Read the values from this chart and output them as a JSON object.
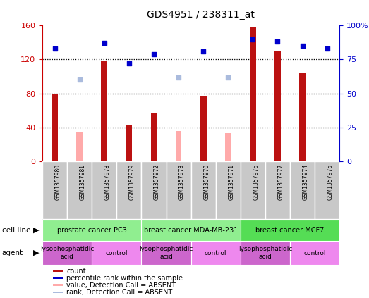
{
  "title": "GDS4951 / 238311_at",
  "samples": [
    "GSM1357980",
    "GSM1357981",
    "GSM1357978",
    "GSM1357979",
    "GSM1357972",
    "GSM1357973",
    "GSM1357970",
    "GSM1357971",
    "GSM1357976",
    "GSM1357977",
    "GSM1357974",
    "GSM1357975"
  ],
  "count_values": [
    80,
    null,
    118,
    42,
    57,
    null,
    77,
    null,
    158,
    130,
    105,
    null
  ],
  "count_absent": [
    null,
    34,
    null,
    null,
    null,
    36,
    null,
    33,
    null,
    null,
    null,
    null
  ],
  "rank_values": [
    83,
    null,
    87,
    72,
    79,
    null,
    81,
    null,
    90,
    88,
    85,
    83
  ],
  "rank_absent": [
    null,
    60,
    null,
    null,
    null,
    62,
    null,
    62,
    null,
    null,
    null,
    null
  ],
  "left_ylim": [
    0,
    160
  ],
  "right_ylim": [
    0,
    100
  ],
  "left_yticks": [
    0,
    40,
    80,
    120,
    160
  ],
  "right_yticks": [
    0,
    25,
    50,
    75,
    100
  ],
  "right_yticklabels": [
    "0",
    "25",
    "50",
    "75",
    "100%"
  ],
  "cell_lines": [
    {
      "label": "prostate cancer PC3",
      "start": 0,
      "end": 4,
      "color": "#90EE90"
    },
    {
      "label": "breast cancer MDA-MB-231",
      "start": 4,
      "end": 8,
      "color": "#90EE90"
    },
    {
      "label": "breast cancer MCF7",
      "start": 8,
      "end": 12,
      "color": "#55DD55"
    }
  ],
  "agents": [
    {
      "label": "lysophosphatidic\nacid",
      "start": 0,
      "end": 2,
      "color": "#CC66CC"
    },
    {
      "label": "control",
      "start": 2,
      "end": 4,
      "color": "#EE88EE"
    },
    {
      "label": "lysophosphatidic\nacid",
      "start": 4,
      "end": 6,
      "color": "#CC66CC"
    },
    {
      "label": "control",
      "start": 6,
      "end": 8,
      "color": "#EE88EE"
    },
    {
      "label": "lysophosphatidic\nacid",
      "start": 8,
      "end": 10,
      "color": "#CC66CC"
    },
    {
      "label": "control",
      "start": 10,
      "end": 12,
      "color": "#EE88EE"
    }
  ],
  "bar_color": "#BB1111",
  "bar_absent_color": "#FFAAAA",
  "rank_color": "#0000CC",
  "rank_absent_color": "#AABBDD",
  "bar_width": 0.25,
  "grid_color": "black",
  "left_tick_color": "#CC0000",
  "right_tick_color": "#0000CC",
  "legend_items": [
    {
      "color": "#BB1111",
      "label": "count"
    },
    {
      "color": "#0000CC",
      "label": "percentile rank within the sample"
    },
    {
      "color": "#FFAAAA",
      "label": "value, Detection Call = ABSENT"
    },
    {
      "color": "#AABBDD",
      "label": "rank, Detection Call = ABSENT"
    }
  ]
}
